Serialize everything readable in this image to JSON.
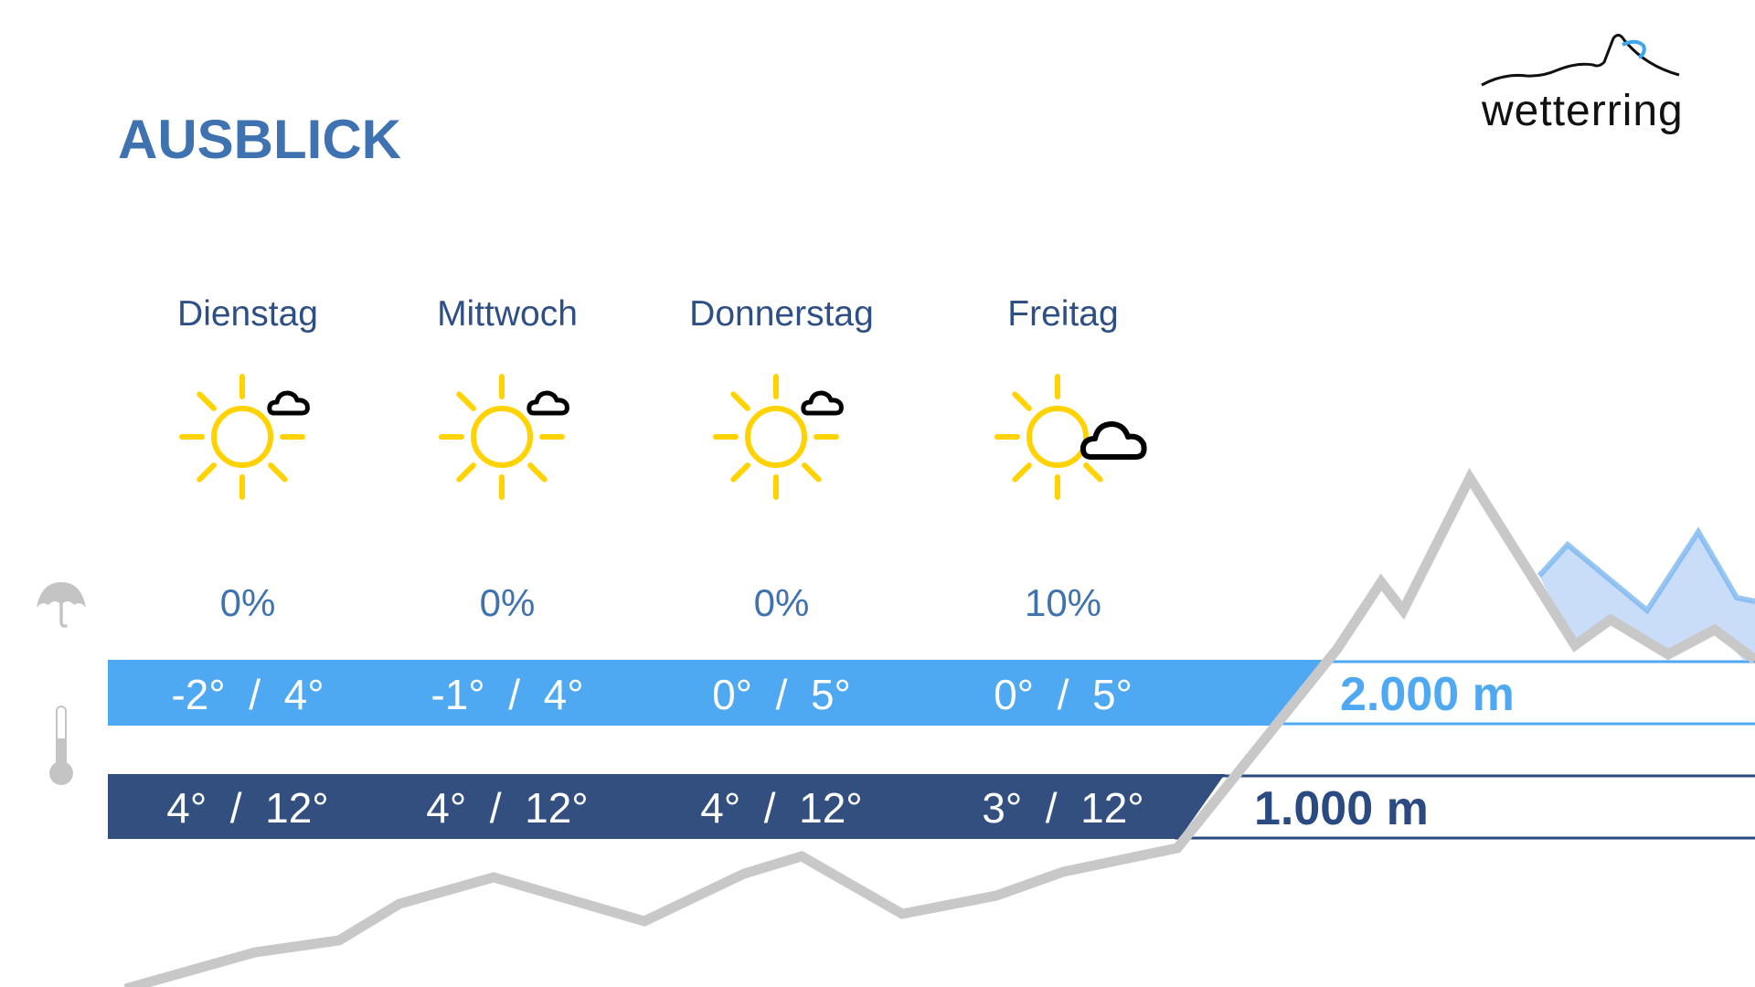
{
  "header": {
    "title": "AUSBLICK"
  },
  "logo": {
    "text": "wetterring"
  },
  "colors": {
    "title": "#3f72b0",
    "bar_2000": "#4ea8f2",
    "bar_1000": "#324f80",
    "mountain": "#c8c8c8",
    "sun": "#ffd200"
  },
  "rows": {
    "precip_icon": "umbrella-icon",
    "temp_icon": "thermometer-icon"
  },
  "altitudes": {
    "high": "2.000 m",
    "low": "1.000 m"
  },
  "days": [
    {
      "name": "Dienstag",
      "icon": "sun-small-cloud",
      "precip": "0%",
      "t2000": "-2°  /  4°",
      "t1000": "4°  /  12°"
    },
    {
      "name": "Mittwoch",
      "icon": "sun-small-cloud",
      "precip": "0%",
      "t2000": "-1°  /  4°",
      "t1000": "4°  /  12°"
    },
    {
      "name": "Donnerstag",
      "icon": "sun-small-cloud",
      "precip": "0%",
      "t2000": "0°  /  5°",
      "t1000": "4°  /  12°"
    },
    {
      "name": "Freitag",
      "icon": "sun-cloud",
      "precip": "10%",
      "t2000": "0°  /  5°",
      "t1000": "3°  /  12°"
    }
  ]
}
